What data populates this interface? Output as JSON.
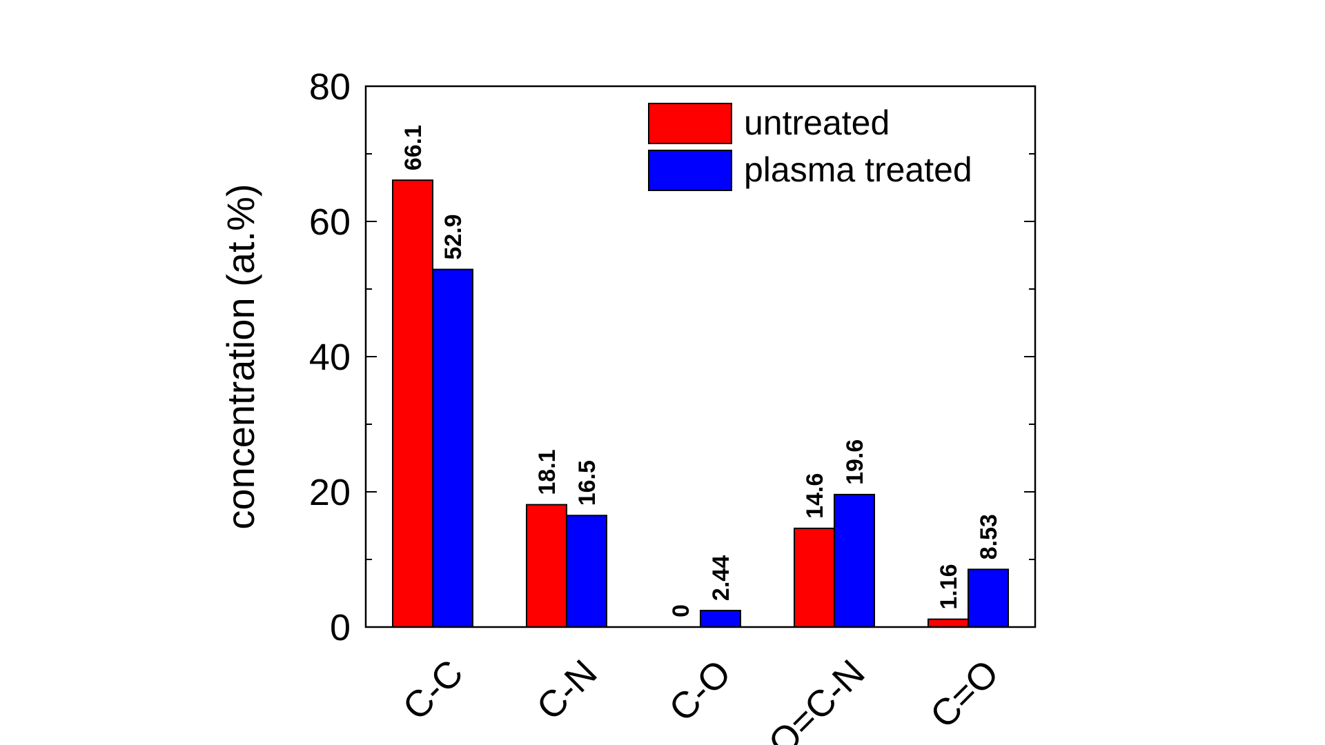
{
  "chart_data": {
    "type": "bar",
    "categories": [
      "C-C",
      "C-N",
      "C-O",
      "O=C-N",
      "C=O"
    ],
    "series": [
      {
        "name": "untreated",
        "color": "#ff0000",
        "values": [
          66.1,
          18.1,
          0,
          14.6,
          1.16
        ],
        "labels": [
          "66.1",
          "18.1",
          "0",
          "14.6",
          "1.16"
        ]
      },
      {
        "name": "plasma treated",
        "color": "#0000ff",
        "values": [
          52.9,
          16.5,
          2.44,
          19.6,
          8.53
        ],
        "labels": [
          "52.9",
          "16.5",
          "2.44",
          "19.6",
          "8.53"
        ]
      }
    ],
    "ylabel": "concentration (at.%)",
    "xlabel": "",
    "title": "",
    "ylim": [
      0,
      80
    ],
    "yticks": [
      "0",
      "20",
      "40",
      "60",
      "80"
    ],
    "legend_position": "top-right",
    "grid": false
  }
}
